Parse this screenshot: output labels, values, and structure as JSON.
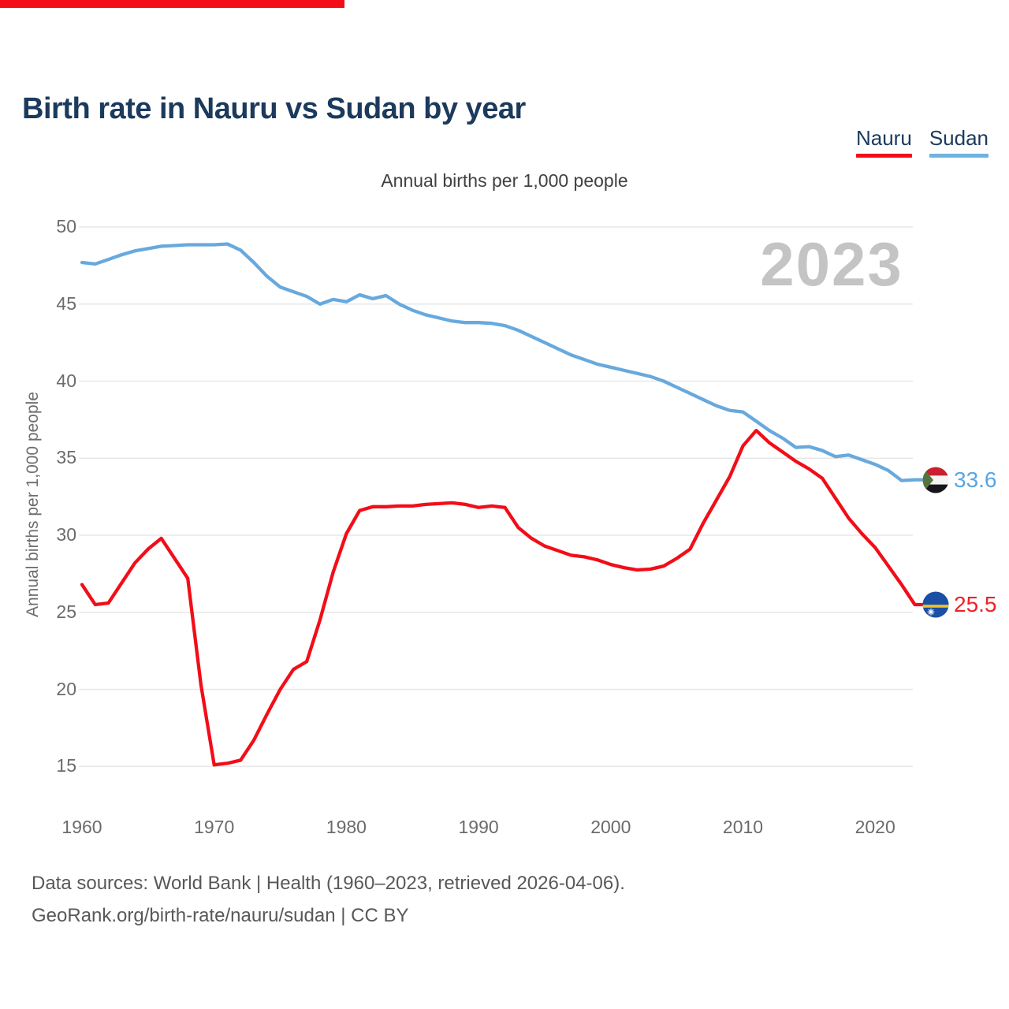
{
  "top_bar": {
    "color": "#f20d18"
  },
  "header": {
    "title": "Birth rate in Nauru vs Sudan by year"
  },
  "legend": {
    "nauru": {
      "label": "Nauru",
      "color": "#f20d18"
    },
    "sudan": {
      "label": "Sudan",
      "color": "#6fb3e3"
    }
  },
  "chart_data": {
    "type": "line",
    "title": "Birth rate in Nauru vs Sudan by year",
    "subtitle": "Annual births per 1,000 people",
    "ylabel": "Annual births per 1,000 people",
    "xlabel": "",
    "watermark_year": "2023",
    "xlim": [
      1960,
      2023
    ],
    "ylim": [
      15,
      50
    ],
    "grid": true,
    "legend_position": "top-right",
    "xticks": [
      1960,
      1970,
      1980,
      1990,
      2000,
      2010,
      2020
    ],
    "yticks": [
      15,
      20,
      25,
      30,
      35,
      40,
      45,
      50
    ],
    "x": [
      1960,
      1961,
      1962,
      1963,
      1964,
      1965,
      1966,
      1967,
      1968,
      1969,
      1970,
      1971,
      1972,
      1973,
      1974,
      1975,
      1976,
      1977,
      1978,
      1979,
      1980,
      1981,
      1982,
      1983,
      1984,
      1985,
      1986,
      1987,
      1988,
      1989,
      1990,
      1991,
      1992,
      1993,
      1994,
      1995,
      1996,
      1997,
      1998,
      1999,
      2000,
      2001,
      2002,
      2003,
      2004,
      2005,
      2006,
      2007,
      2008,
      2009,
      2010,
      2011,
      2012,
      2013,
      2014,
      2015,
      2016,
      2017,
      2018,
      2019,
      2020,
      2021,
      2022,
      2023
    ],
    "series": [
      {
        "name": "Nauru",
        "color": "#f20d18",
        "values": [
          26.8,
          25.5,
          25.6,
          26.9,
          28.2,
          29.1,
          29.8,
          28.5,
          27.2,
          20.3,
          15.1,
          15.2,
          15.4,
          16.7,
          18.4,
          20.0,
          21.3,
          21.8,
          24.5,
          27.6,
          30.1,
          31.6,
          31.85,
          31.85,
          31.9,
          31.9,
          32.0,
          32.05,
          32.1,
          32.0,
          31.8,
          31.9,
          31.8,
          30.5,
          29.8,
          29.3,
          29.0,
          28.7,
          28.6,
          28.4,
          28.1,
          27.9,
          27.75,
          27.8,
          28.0,
          28.5,
          29.1,
          30.8,
          32.3,
          33.8,
          35.8,
          36.8,
          36.0,
          35.4,
          34.8,
          34.3,
          33.7,
          32.4,
          31.1,
          30.1,
          29.2,
          28.0,
          26.8,
          25.5
        ]
      },
      {
        "name": "Sudan",
        "color": "#68a9dd",
        "values": [
          47.7,
          47.6,
          47.9,
          48.2,
          48.45,
          48.6,
          48.75,
          48.8,
          48.85,
          48.85,
          48.85,
          48.9,
          48.5,
          47.7,
          46.8,
          46.1,
          45.8,
          45.5,
          45.0,
          45.3,
          45.15,
          45.6,
          45.35,
          45.55,
          45.0,
          44.6,
          44.3,
          44.1,
          43.9,
          43.8,
          43.8,
          43.75,
          43.6,
          43.3,
          42.9,
          42.5,
          42.1,
          41.7,
          41.4,
          41.1,
          40.9,
          40.7,
          40.5,
          40.3,
          40.0,
          39.6,
          39.2,
          38.8,
          38.4,
          38.1,
          38.0,
          37.4,
          36.8,
          36.3,
          35.7,
          35.75,
          35.5,
          35.1,
          35.2,
          34.9,
          34.6,
          34.2,
          33.55,
          33.6
        ]
      }
    ],
    "end_labels": {
      "sudan": "33.6",
      "nauru": "25.5"
    },
    "icons": {
      "sudan": "sudan-flag-icon",
      "nauru": "nauru-flag-icon"
    }
  },
  "colors": {
    "title": "#1b3a5c",
    "nauru_red": "#f20d18",
    "sudan_blue": "#68a9dd",
    "sudan_value_text": "#58a6e5",
    "nauru_value_text": "#f02028",
    "watermark": "#c4c4c4",
    "gridline": "#e7e7e7",
    "tick_text": "#6b6b6b"
  },
  "footer": {
    "line1": "Data sources: World Bank | Health (1960–2023, retrieved 2026-04-06).",
    "line2": "GeoRank.org/birth-rate/nauru/sudan | CC BY"
  }
}
